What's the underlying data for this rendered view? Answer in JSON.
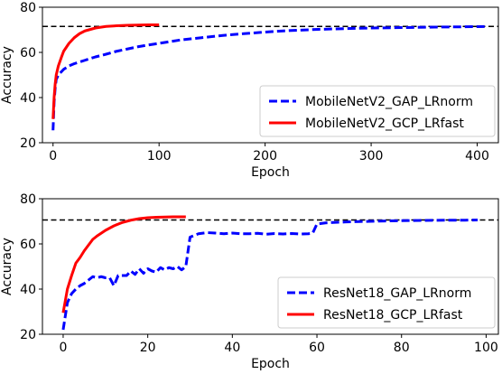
{
  "chart_data": [
    {
      "type": "line",
      "xlabel": "Epoch",
      "ylabel": "Accuracy",
      "xlim": [
        -10,
        420
      ],
      "ylim": [
        20,
        80
      ],
      "xticks": [
        0,
        100,
        200,
        300,
        400
      ],
      "yticks": [
        20,
        40,
        60,
        80
      ],
      "legend_position": "lower-right",
      "reference_line": {
        "y": 71.5,
        "style": "dashed",
        "color": "#000000"
      },
      "series": [
        {
          "name": "MobileNetV2_GAP_LRnorm",
          "color": "#0000ff",
          "style": "dashed",
          "x": [
            0,
            1,
            2,
            3,
            5,
            8,
            10,
            15,
            20,
            30,
            40,
            50,
            60,
            70,
            80,
            90,
            100,
            120,
            140,
            160,
            180,
            200,
            220,
            250,
            280,
            300,
            330,
            360,
            400,
            410
          ],
          "y": [
            25.5,
            38,
            44,
            48,
            50,
            51.5,
            52.5,
            54,
            55,
            56.5,
            58,
            59.2,
            60.5,
            61.5,
            62.5,
            63.3,
            64,
            65.5,
            66.5,
            67.5,
            68.3,
            69,
            69.6,
            70.2,
            70.6,
            70.8,
            71,
            71.2,
            71.4,
            71.5
          ]
        },
        {
          "name": "MobileNetV2_GCP_LRfast",
          "color": "#ff0000",
          "style": "solid",
          "x": [
            0,
            1,
            2,
            3,
            5,
            8,
            10,
            15,
            20,
            25,
            30,
            40,
            50,
            60,
            70,
            80,
            90,
            100
          ],
          "y": [
            30.5,
            40,
            46,
            50,
            54,
            58,
            60.5,
            64,
            66.5,
            68.3,
            69.5,
            70.8,
            71.5,
            71.8,
            72,
            72.1,
            72.2,
            72.2
          ]
        }
      ]
    },
    {
      "type": "line",
      "xlabel": "Epoch",
      "ylabel": "Accuracy",
      "xlim": [
        -4.9,
        102.9
      ],
      "ylim": [
        20,
        80
      ],
      "xticks": [
        0,
        20,
        40,
        60,
        80,
        100
      ],
      "yticks": [
        20,
        40,
        60,
        80
      ],
      "legend_position": "lower-right",
      "reference_line": {
        "y": 70.6,
        "style": "dashed",
        "color": "#000000"
      },
      "series": [
        {
          "name": "ResNet18_GAP_LRnorm",
          "color": "#0000ff",
          "style": "dashed",
          "x": [
            0,
            1,
            2,
            3,
            4,
            5,
            6,
            7,
            8,
            9,
            10,
            11,
            12,
            13,
            14,
            15,
            16,
            17,
            18,
            19,
            20,
            21,
            22,
            23,
            24,
            25,
            26,
            27,
            28,
            29,
            30,
            32,
            34,
            36,
            38,
            40,
            42,
            44,
            46,
            48,
            50,
            52,
            54,
            56,
            58,
            59,
            60,
            62,
            65,
            70,
            75,
            80,
            85,
            90,
            95,
            98
          ],
          "y": [
            22,
            34,
            38,
            40,
            41.5,
            42.5,
            44,
            45.5,
            45,
            45.5,
            45,
            45,
            41.5,
            46,
            46,
            46,
            48,
            46.5,
            49,
            47,
            49,
            48,
            47.5,
            49.5,
            48.5,
            49.5,
            49,
            50,
            48.5,
            50,
            63,
            64.5,
            65,
            64.8,
            64.5,
            64.8,
            64.5,
            64.5,
            64.7,
            64.3,
            64.6,
            64.4,
            64.6,
            64.4,
            64.5,
            64.8,
            68.8,
            69.3,
            69.6,
            69.9,
            70.1,
            70.3,
            70.4,
            70.5,
            70.5,
            70.6
          ]
        },
        {
          "name": "ResNet18_GCP_LRfast",
          "color": "#ff0000",
          "style": "solid",
          "x": [
            0,
            1,
            2,
            3,
            4,
            5,
            6,
            7,
            8,
            10,
            12,
            14,
            16,
            18,
            20,
            22,
            24,
            26,
            28,
            29
          ],
          "y": [
            29.5,
            40,
            46,
            51.5,
            54,
            57,
            59.5,
            62,
            63.5,
            66,
            68,
            69.5,
            70.5,
            71.2,
            71.6,
            71.8,
            71.9,
            72,
            72,
            72
          ]
        }
      ]
    }
  ]
}
